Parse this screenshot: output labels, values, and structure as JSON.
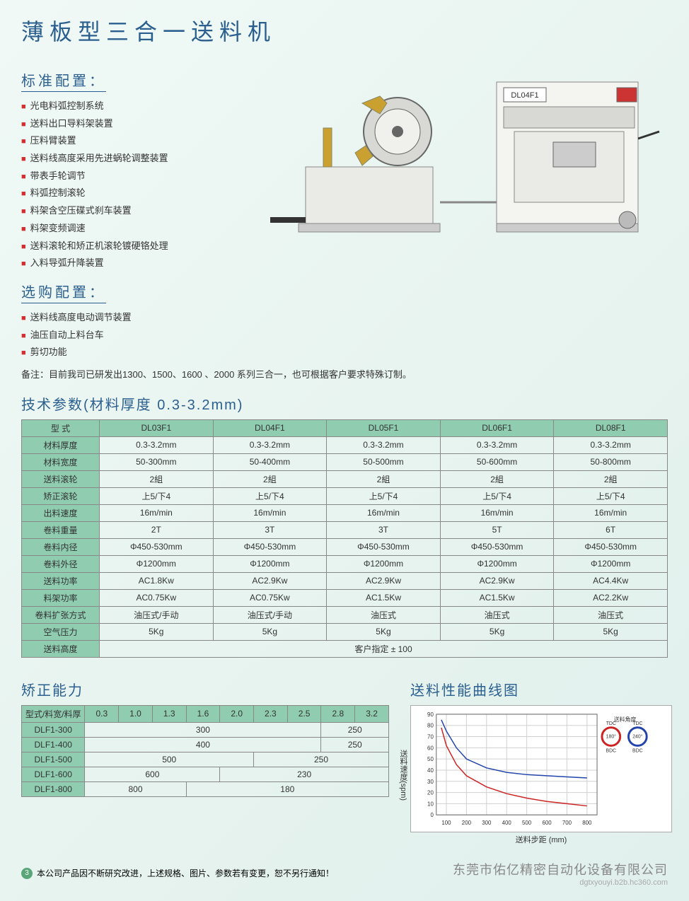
{
  "main_title": "薄板型三合一送料机",
  "std_config": {
    "title": "标准配置：",
    "items": [
      "光电料弧控制系统",
      "送料出口导料架装置",
      "压料臂装置",
      "送料线高度采用先进蜗轮调整装置",
      "带表手轮调节",
      "料弧控制滚轮",
      "料架含空压碟式刹车装置",
      "料架变频调速",
      "送料滚轮和矫正机滚轮镀硬铬处理",
      "入料导弧升降装置"
    ]
  },
  "opt_config": {
    "title": "选购配置：",
    "items": [
      "送料线高度电动调节装置",
      "油压自动上料台车",
      "剪切功能"
    ]
  },
  "note_label": "备注：",
  "note_text": "目前我司已研发出1300、1500、1600 、2000 系列三合一，也可根据客户要求特殊订制。",
  "spec_title": "技术参数(材料厚度 0.3-3.2mm)",
  "spec_table": {
    "header": [
      "型 式",
      "DL03F1",
      "DL04F1",
      "DL05F1",
      "DL06F1",
      "DL08F1"
    ],
    "rows": [
      {
        "label": "材料厚度",
        "cells": [
          "0.3-3.2mm",
          "0.3-3.2mm",
          "0.3-3.2mm",
          "0.3-3.2mm",
          "0.3-3.2mm"
        ]
      },
      {
        "label": "材料宽度",
        "cells": [
          "50-300mm",
          "50-400mm",
          "50-500mm",
          "50-600mm",
          "50-800mm"
        ]
      },
      {
        "label": "送料滚轮",
        "cells": [
          "2組",
          "2組",
          "2組",
          "2組",
          "2組"
        ]
      },
      {
        "label": "矫正滚轮",
        "cells": [
          "上5/下4",
          "上5/下4",
          "上5/下4",
          "上5/下4",
          "上5/下4"
        ]
      },
      {
        "label": "出料速度",
        "cells": [
          "16m/min",
          "16m/min",
          "16m/min",
          "16m/min",
          "16m/min"
        ]
      },
      {
        "label": "卷料重量",
        "cells": [
          "2T",
          "3T",
          "3T",
          "5T",
          "6T"
        ]
      },
      {
        "label": "卷料内径",
        "cells": [
          "Φ450-530mm",
          "Φ450-530mm",
          "Φ450-530mm",
          "Φ450-530mm",
          "Φ450-530mm"
        ]
      },
      {
        "label": "卷料外径",
        "cells": [
          "Φ1200mm",
          "Φ1200mm",
          "Φ1200mm",
          "Φ1200mm",
          "Φ1200mm"
        ]
      },
      {
        "label": "送料功率",
        "cells": [
          "AC1.8Kw",
          "AC2.9Kw",
          "AC2.9Kw",
          "AC2.9Kw",
          "AC4.4Kw"
        ]
      },
      {
        "label": "料架功率",
        "cells": [
          "AC0.75Kw",
          "AC0.75Kw",
          "AC1.5Kw",
          "AC1.5Kw",
          "AC2.2Kw"
        ]
      },
      {
        "label": "卷料扩张方式",
        "cells": [
          "油压式/手动",
          "油压式/手动",
          "油压式",
          "油压式",
          "油压式"
        ]
      },
      {
        "label": "空气压力",
        "cells": [
          "5Kg",
          "5Kg",
          "5Kg",
          "5Kg",
          "5Kg"
        ]
      },
      {
        "label": "送料高度",
        "span": "客户指定 ± 100"
      }
    ]
  },
  "cap_title": "矫正能力",
  "cap_table": {
    "header": [
      "型式/料宽/料厚",
      "0.3",
      "1.0",
      "1.3",
      "1.6",
      "2.0",
      "2.3",
      "2.5",
      "2.8",
      "3.2"
    ],
    "rows": [
      {
        "label": "DLF1-300",
        "spans": [
          {
            "text": "300",
            "cols": 7
          },
          {
            "text": "250",
            "cols": 2
          }
        ]
      },
      {
        "label": "DLF1-400",
        "spans": [
          {
            "text": "400",
            "cols": 7
          },
          {
            "text": "250",
            "cols": 2
          }
        ]
      },
      {
        "label": "DLF1-500",
        "spans": [
          {
            "text": "500",
            "cols": 5
          },
          {
            "text": "250",
            "cols": 4
          }
        ]
      },
      {
        "label": "DLF1-600",
        "spans": [
          {
            "text": "600",
            "cols": 4
          },
          {
            "text": "230",
            "cols": 5
          }
        ]
      },
      {
        "label": "DLF1-800",
        "spans": [
          {
            "text": "800",
            "cols": 3
          },
          {
            "text": "180",
            "cols": 6
          }
        ]
      }
    ]
  },
  "chart": {
    "title": "送料性能曲线图",
    "y_label": "送料速度(spm)",
    "x_label": "送料步距 (mm)",
    "x_ticks": [
      100,
      200,
      300,
      400,
      500,
      600,
      700,
      800
    ],
    "y_ticks": [
      0,
      10,
      20,
      30,
      40,
      50,
      60,
      70,
      80,
      90
    ],
    "xlim": [
      50,
      850
    ],
    "ylim": [
      0,
      90
    ],
    "legend_title": "送料角度",
    "legend": [
      {
        "deg": "180°",
        "tdc": "TDC",
        "bdc": "BDC",
        "color": "#cc2222"
      },
      {
        "deg": "240°",
        "tdc": "TDC",
        "bdc": "BDC",
        "color": "#2244aa"
      }
    ],
    "curves": [
      {
        "color": "#cc2222",
        "points": [
          [
            75,
            78
          ],
          [
            100,
            62
          ],
          [
            150,
            45
          ],
          [
            200,
            35
          ],
          [
            300,
            25
          ],
          [
            400,
            19
          ],
          [
            500,
            15
          ],
          [
            600,
            12
          ],
          [
            700,
            10
          ],
          [
            800,
            8
          ]
        ]
      },
      {
        "color": "#2244aa",
        "points": [
          [
            75,
            85
          ],
          [
            100,
            75
          ],
          [
            150,
            60
          ],
          [
            200,
            50
          ],
          [
            300,
            42
          ],
          [
            400,
            38
          ],
          [
            500,
            36
          ],
          [
            600,
            35
          ],
          [
            700,
            34
          ],
          [
            800,
            33
          ]
        ]
      }
    ],
    "grid_color": "#d0d0d0"
  },
  "footer_num": "3",
  "footer_text": "本公司产品因不断研究改进，上述规格、图片、参数若有变更，恕不另行通知！",
  "company": "东莞市佑亿精密自动化设备有限公司",
  "url": "dgtxyouyi.b2b.hc360.com",
  "machine_label": "DL04F1"
}
